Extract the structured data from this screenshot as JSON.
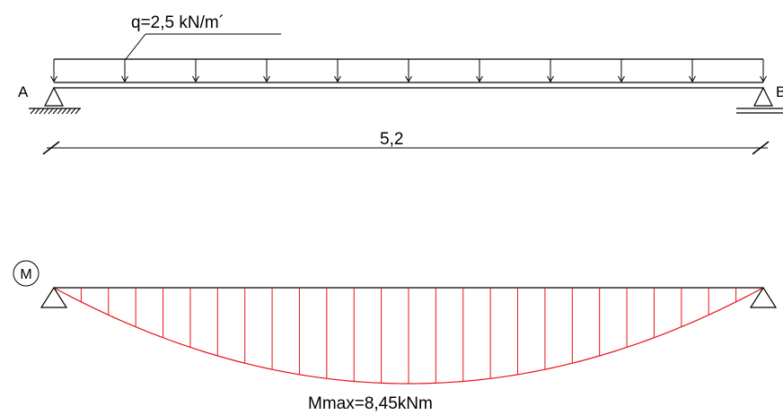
{
  "load": {
    "label": "q=2,5 kN/m´"
  },
  "supports": {
    "left_label": "A",
    "right_label": "B"
  },
  "span": {
    "label": "5,2",
    "value": 5.2
  },
  "moment_diagram": {
    "symbol": "M",
    "max_label": "Mmax=8,45kNm",
    "max_value": 8.45,
    "shape": "parabola",
    "hatch_count": 26
  },
  "colors": {
    "line": "#000000",
    "moment": "#e8141b"
  },
  "icons": {
    "support_left": "pinned-support-icon",
    "support_right": "roller-support-icon"
  }
}
